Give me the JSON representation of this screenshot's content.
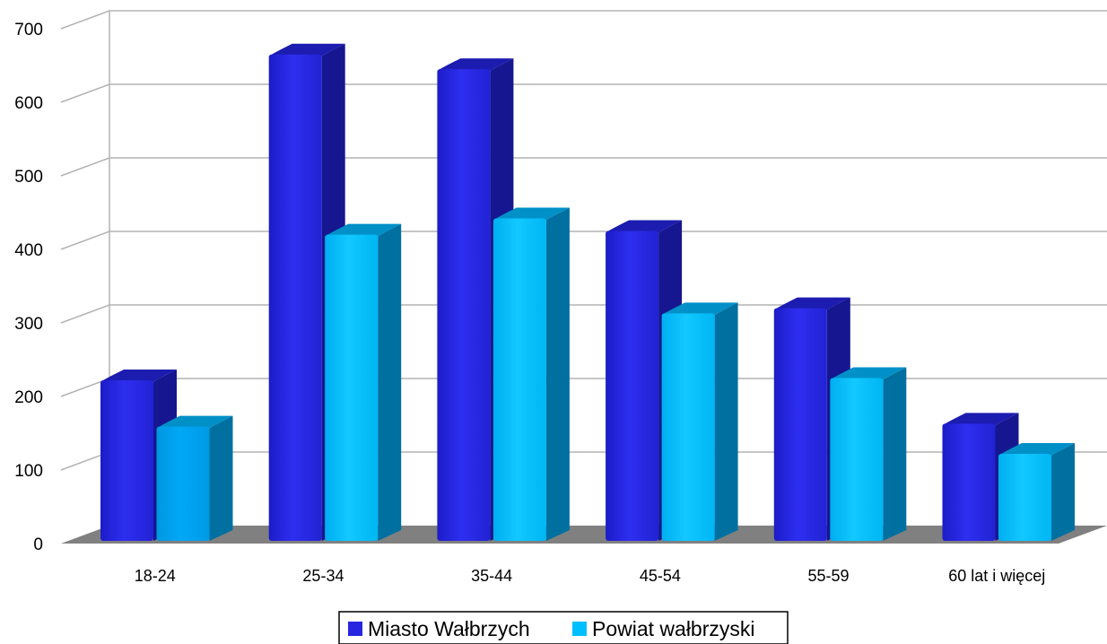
{
  "chart_data": {
    "type": "bar",
    "title": "",
    "xlabel": "",
    "ylabel": "",
    "categories": [
      "18-24",
      "25-34",
      "35-44",
      "45-54",
      "55-59",
      "60 lat i więcej"
    ],
    "series": [
      {
        "name": "Miasto Wałbrzych",
        "values": [
          222,
          665,
          645,
          425,
          320,
          163
        ],
        "color": "#2626e0",
        "side_color": "#161690",
        "top_color": "#1c1cb0"
      },
      {
        "name": "Powiat wałbrzyski",
        "values": [
          159,
          420,
          442,
          313,
          225,
          122
        ],
        "color": "#00bfff",
        "side_color": "#0070a0",
        "top_color": "#0090c8"
      }
    ],
    "ylim": [
      0,
      700
    ],
    "yticks": [
      "0",
      "100",
      "200",
      "300",
      "400",
      "500",
      "600",
      "700"
    ],
    "grid": true,
    "legend_position": "bottom",
    "view": "3d"
  }
}
